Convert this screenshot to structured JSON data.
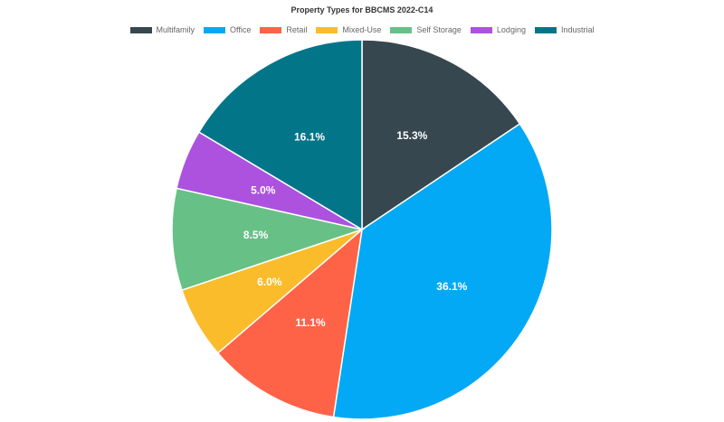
{
  "chart_data": {
    "type": "pie",
    "title": "Property Types for BBCMS 2022-C14",
    "legend_position": "top",
    "start_angle": "12 o'clock, clockwise",
    "slices": [
      {
        "label": "Multifamily",
        "value": 15.3,
        "display": "15.3%",
        "color": "#37474F"
      },
      {
        "label": "Office",
        "value": 36.1,
        "display": "36.1%",
        "color": "#03A9F4"
      },
      {
        "label": "Retail",
        "value": 11.1,
        "display": "11.1%",
        "color": "#FF6347"
      },
      {
        "label": "Mixed-Use",
        "value": 6.0,
        "display": "6.0%",
        "color": "#FBBC2C"
      },
      {
        "label": "Self Storage",
        "value": 8.5,
        "display": "8.5%",
        "color": "#67C187"
      },
      {
        "label": "Lodging",
        "value": 5.0,
        "display": "5.0%",
        "color": "#AC52DF"
      },
      {
        "label": "Industrial",
        "value": 16.1,
        "display": "16.1%",
        "color": "#027589"
      }
    ]
  }
}
